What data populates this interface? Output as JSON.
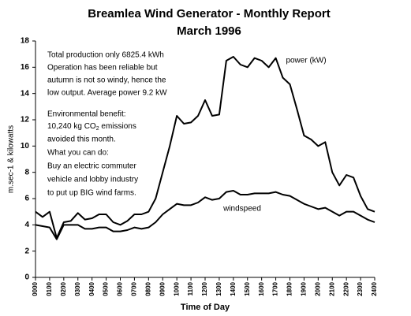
{
  "chart_data": {
    "type": "line",
    "title": "Breamlea Wind Generator  -  Monthly Report",
    "subtitle": "March  1996",
    "x_label": "Time of Day",
    "y_label": "m.sec-1 & kilowatts",
    "annotation": [
      "Total production only 6825.4 kWh",
      "Operation has been reliable but",
      "autumn is not so windy, hence the",
      "low output. Average power 9.2 kW",
      "Environmental benefit:",
      {
        "before": "10,240 kg CO",
        "sub": "2",
        "after": " emissions"
      },
      "avoided this month.",
      "What you can do:",
      "Buy an electric commuter",
      "vehicle and lobby industry",
      "to put up BIG wind farms."
    ],
    "x": [
      0,
      0.5,
      1,
      1.5,
      2,
      2.5,
      3,
      3.5,
      4,
      4.5,
      5,
      5.5,
      6,
      6.5,
      7,
      7.5,
      8,
      8.5,
      9,
      9.5,
      10,
      10.5,
      11,
      11.5,
      12,
      12.5,
      13,
      13.5,
      14,
      14.5,
      15,
      15.5,
      16,
      16.5,
      17,
      17.5,
      18,
      18.5,
      19,
      19.5,
      20,
      20.5,
      21,
      21.5,
      22,
      22.5,
      23,
      23.5,
      24
    ],
    "series": [
      {
        "name": "power (kW)",
        "color": "#000000",
        "values": [
          5.0,
          4.6,
          5.0,
          3.0,
          4.2,
          4.3,
          4.9,
          4.4,
          4.5,
          4.8,
          4.8,
          4.2,
          4.0,
          4.3,
          4.8,
          4.8,
          5.0,
          6.0,
          8.0,
          10.0,
          12.3,
          11.7,
          11.8,
          12.3,
          13.5,
          12.3,
          12.4,
          16.5,
          16.8,
          16.2,
          16.0,
          16.7,
          16.5,
          16.0,
          16.7,
          15.2,
          14.7,
          12.8,
          10.8,
          10.5,
          10.0,
          10.3,
          8.0,
          7.0,
          7.8,
          7.6,
          6.2,
          5.2,
          5.0
        ]
      },
      {
        "name": "windspeed",
        "color": "#000000",
        "values": [
          4.0,
          3.9,
          3.8,
          2.9,
          4.0,
          4.0,
          4.0,
          3.7,
          3.7,
          3.8,
          3.8,
          3.5,
          3.5,
          3.6,
          3.8,
          3.7,
          3.8,
          4.2,
          4.8,
          5.2,
          5.6,
          5.5,
          5.5,
          5.7,
          6.1,
          5.9,
          6.0,
          6.5,
          6.6,
          6.3,
          6.3,
          6.4,
          6.4,
          6.4,
          6.5,
          6.3,
          6.2,
          5.9,
          5.6,
          5.4,
          5.2,
          5.3,
          5.0,
          4.7,
          5.0,
          5.0,
          4.7,
          4.4,
          4.2
        ]
      }
    ],
    "xlim": [
      0,
      24
    ],
    "xticks": [
      {
        "value": 0,
        "label": "0000"
      },
      {
        "value": 1,
        "label": "0100"
      },
      {
        "value": 2,
        "label": "0200"
      },
      {
        "value": 3,
        "label": "0300"
      },
      {
        "value": 4,
        "label": "0400"
      },
      {
        "value": 5,
        "label": "0500"
      },
      {
        "value": 6,
        "label": "0600"
      },
      {
        "value": 7,
        "label": "0700"
      },
      {
        "value": 8,
        "label": "0800"
      },
      {
        "value": 9,
        "label": "0900"
      },
      {
        "value": 10,
        "label": "1000"
      },
      {
        "value": 11,
        "label": "1100"
      },
      {
        "value": 12,
        "label": "1200"
      },
      {
        "value": 13,
        "label": "1300"
      },
      {
        "value": 14,
        "label": "1400"
      },
      {
        "value": 15,
        "label": "1500"
      },
      {
        "value": 16,
        "label": "1600"
      },
      {
        "value": 17,
        "label": "1700"
      },
      {
        "value": 18,
        "label": "1800"
      },
      {
        "value": 19,
        "label": "1900"
      },
      {
        "value": 20,
        "label": "2000"
      },
      {
        "value": 21,
        "label": "2100"
      },
      {
        "value": 22,
        "label": "2200"
      },
      {
        "value": 23,
        "label": "2300"
      },
      {
        "value": 24,
        "label": "2400"
      }
    ],
    "ylim": [
      0,
      18
    ],
    "yticks": [
      0,
      2,
      4,
      6,
      8,
      10,
      12,
      14,
      16,
      18
    ],
    "grid": false
  }
}
